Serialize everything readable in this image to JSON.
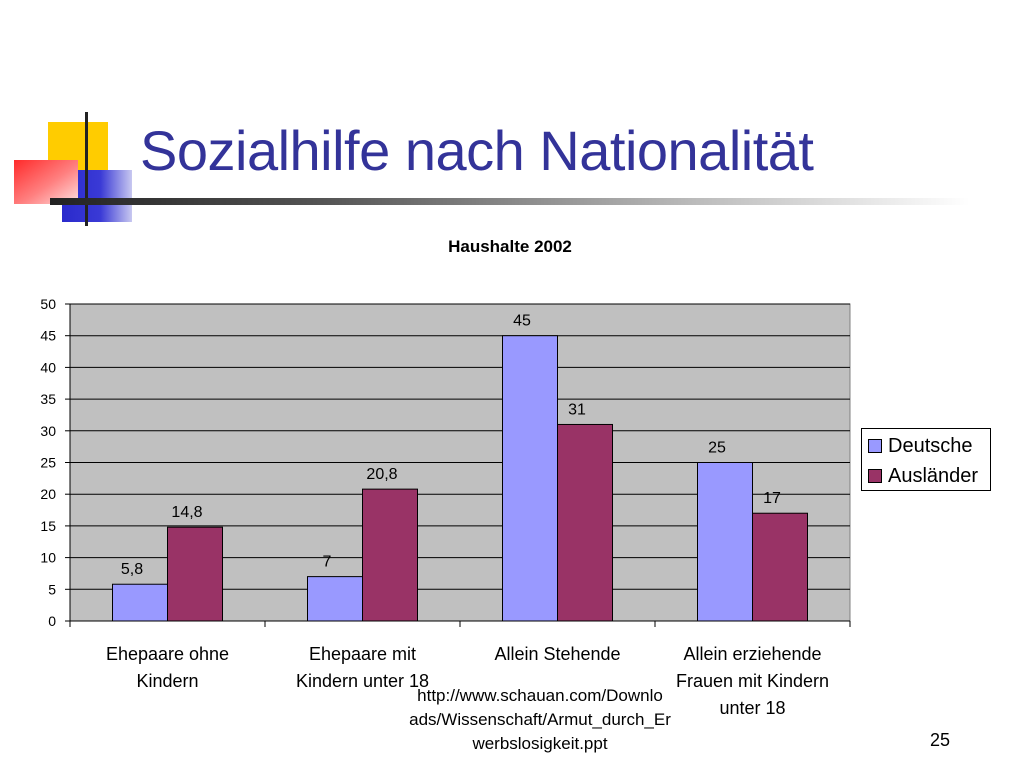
{
  "slide": {
    "title": "Sozialhilfe nach Nationalität",
    "source_note": "http://www.schauan.com/Downloads/Wissenschaft/Armut_durch_Erwerbslosigkeit.ppt",
    "source_lines": [
      "http://www.schauan.com/Downlo",
      "ads/Wissenschaft/Armut_durch_Er",
      "werbslosigkeit.ppt"
    ],
    "page_number": "25",
    "colors": {
      "title": "#333399",
      "deco_yellow": "#ffcc00",
      "deco_blue": "#3333cc",
      "deco_red": "#ff3333"
    }
  },
  "chart_data": {
    "type": "bar",
    "title": "Haushalte 2002",
    "categories": [
      [
        "Ehepaare ohne",
        "Kindern"
      ],
      [
        "Ehepaare mit",
        "Kindern unter 18"
      ],
      [
        "Allein Stehende"
      ],
      [
        "Allein erziehende",
        "Frauen mit Kindern",
        "unter 18"
      ]
    ],
    "series": [
      {
        "name": "Deutsche",
        "color": "#9999ff",
        "values": [
          5.8,
          7,
          45,
          25
        ],
        "labels": [
          "5,8",
          "7",
          "45",
          "25"
        ]
      },
      {
        "name": "Ausländer",
        "color": "#993366",
        "values": [
          14.8,
          20.8,
          31,
          17
        ],
        "labels": [
          "14,8",
          "20,8",
          "31",
          "17"
        ]
      }
    ],
    "ylim": [
      0,
      50
    ],
    "yticks": [
      0,
      5,
      10,
      15,
      20,
      25,
      30,
      35,
      40,
      45,
      50
    ],
    "grid": true,
    "plot_background": "#c0c0c0",
    "legend_position": "right"
  }
}
